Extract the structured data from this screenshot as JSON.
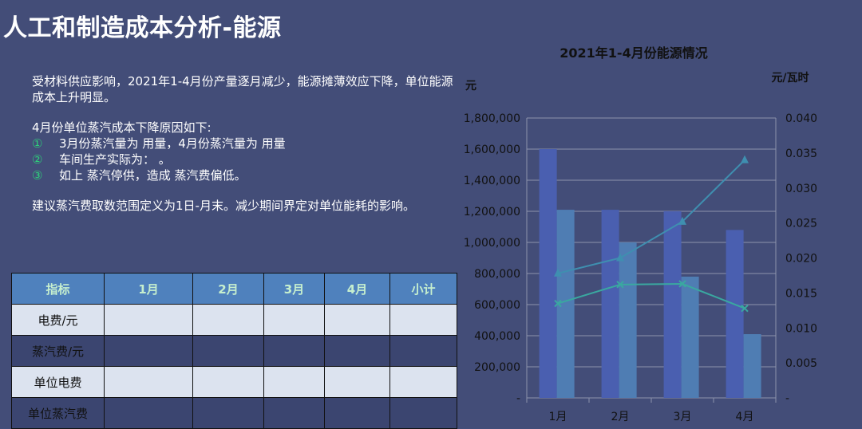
{
  "page": {
    "title": "人工和制造成本分析-能源"
  },
  "analysis": {
    "para1": "受材料供应影响，2021年1-4月份产量逐月减少，能源摊薄效应下降，单位能源成本上升明显。",
    "reasons_heading": "4月份单位蒸汽成本下降原因如下:",
    "reasons": [
      {
        "marker": "①",
        "text": "3月份蒸汽量为 用量，4月份蒸汽量为 用量"
      },
      {
        "marker": "②",
        "text": "车间生产实际为：  。"
      },
      {
        "marker": "③",
        "text": "如上 蒸汽停供，造成 蒸汽费偏低。"
      }
    ],
    "suggestion": "建议蒸汽费取数范围定义为1日-月末。减少期间界定对单位能耗的影响。"
  },
  "table": {
    "headers": [
      "指标",
      "1月",
      "2月",
      "3月",
      "4月",
      "小计"
    ],
    "rows": [
      {
        "label": "电费/元"
      },
      {
        "label": "蒸汽费/元"
      },
      {
        "label": "单位电费"
      },
      {
        "label": "单位蒸汽费"
      }
    ]
  },
  "colors": {
    "background": "#434d78",
    "bar_series_1": "#4a5fb0",
    "bar_series_2": "#4f7db3",
    "line_series_1": "#3f8fb0",
    "line_series_2": "#3aa8a0",
    "table_header": "#4f81bd",
    "table_header_text": "#c6efce",
    "table_row_light": "#dce3ef"
  },
  "chart_data": {
    "type": "bar",
    "title": "2021年1-4月份能源情况",
    "categories": [
      "1月",
      "2月",
      "3月",
      "4月"
    ],
    "left_axis": {
      "unit": "元",
      "ylim": [
        0,
        1800000
      ],
      "ticks": [
        "-",
        "200,000",
        "400,000",
        "600,000",
        "800,000",
        "1,000,000",
        "1,200,000",
        "1,400,000",
        "1,600,000",
        "1,800,000"
      ]
    },
    "right_axis": {
      "unit": "元/瓦时",
      "ylim": [
        0,
        0.04
      ],
      "ticks": [
        "-",
        "0.005",
        "0.010",
        "0.015",
        "0.020",
        "0.025",
        "0.030",
        "0.035",
        "0.040"
      ]
    },
    "bar_series": [
      {
        "values": [
          1600000,
          1210000,
          1200000,
          1080000
        ]
      },
      {
        "values": [
          1210000,
          1000000,
          780000,
          410000
        ]
      }
    ],
    "line_series": [
      {
        "marker": "triangle",
        "values": [
          0.0178,
          0.02,
          0.0252,
          0.034
        ]
      },
      {
        "marker": "x",
        "values": [
          0.0135,
          0.0162,
          0.0163,
          0.0128
        ]
      }
    ],
    "grid": true
  }
}
